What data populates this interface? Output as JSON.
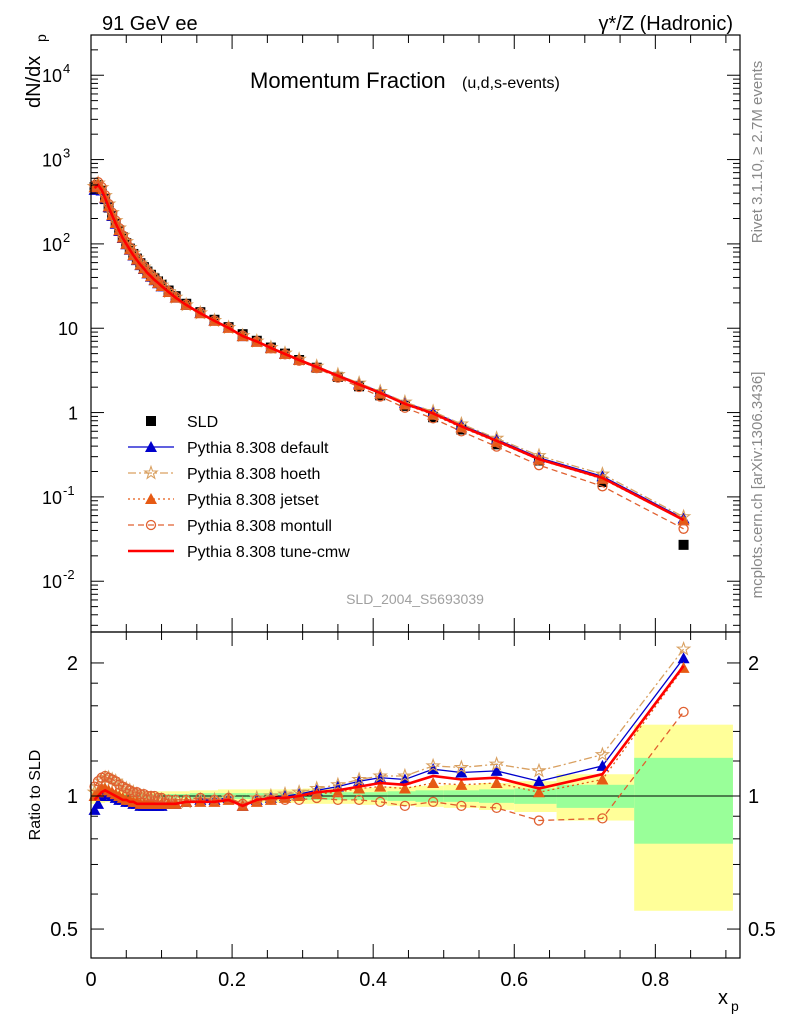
{
  "header": {
    "left": "91 GeV ee",
    "right": "γ*/Z (Hadronic)"
  },
  "side_text": {
    "rivet": "Rivet 3.1.10, ≥ 2.7M events",
    "mcplots": "mcplots.cern.ch [arXiv:1306.3436]"
  },
  "chart_data": [
    {
      "type": "scatter",
      "yscale": "log",
      "title": "Momentum Fraction",
      "title_suffix": "(u,d,s-events)",
      "ylabel": "dN/dx",
      "ylabel_sub": "p",
      "analysis_id": "SLD_2004_S5693039",
      "xlim": [
        0,
        0.92
      ],
      "ylim": [
        0.0025,
        30000
      ],
      "legend_placement": "center-left",
      "x": [
        0.005,
        0.01,
        0.015,
        0.02,
        0.025,
        0.03,
        0.035,
        0.04,
        0.045,
        0.05,
        0.055,
        0.06,
        0.065,
        0.07,
        0.075,
        0.08,
        0.085,
        0.09,
        0.095,
        0.1,
        0.11,
        0.12,
        0.135,
        0.155,
        0.175,
        0.195,
        0.215,
        0.235,
        0.255,
        0.275,
        0.295,
        0.32,
        0.35,
        0.38,
        0.41,
        0.445,
        0.485,
        0.525,
        0.575,
        0.635,
        0.725,
        0.84
      ],
      "series": [
        {
          "name": "SLD",
          "color": "#000000",
          "marker": "square",
          "line": "none",
          "values": [
            470,
            500,
            430,
            340,
            270,
            215,
            175,
            145,
            120,
            102,
            88,
            76,
            67,
            59,
            53,
            47,
            43,
            39,
            36,
            33,
            28,
            24,
            19.5,
            15.5,
            12.6,
            10.3,
            8.5,
            7.1,
            5.9,
            5.0,
            4.2,
            3.4,
            2.65,
            2.05,
            1.6,
            1.2,
            0.88,
            0.63,
            0.42,
            0.27,
            0.15,
            0.027
          ]
        },
        {
          "name": "Pythia 8.308 default",
          "color": "#0000cc",
          "marker": "triangle",
          "line": "solid",
          "ratio": [
            0.93,
            0.96,
            1.0,
            1.02,
            1.01,
            1.0,
            0.99,
            0.98,
            0.98,
            0.97,
            0.97,
            0.96,
            0.96,
            0.95,
            0.95,
            0.95,
            0.95,
            0.95,
            0.95,
            0.95,
            0.96,
            0.96,
            0.97,
            0.98,
            0.98,
            0.99,
            0.95,
            0.98,
            0.99,
            1.0,
            1.01,
            1.03,
            1.05,
            1.08,
            1.1,
            1.09,
            1.15,
            1.13,
            1.14,
            1.08,
            1.17,
            2.05
          ]
        },
        {
          "name": "Pythia 8.308 hoeth",
          "color": "#d9a060",
          "marker": "star",
          "line": "dashdot",
          "ratio": [
            1.02,
            1.05,
            1.08,
            1.1,
            1.1,
            1.09,
            1.08,
            1.06,
            1.05,
            1.04,
            1.03,
            1.02,
            1.01,
            1.0,
            1.0,
            0.99,
            0.99,
            0.98,
            0.98,
            0.98,
            0.97,
            0.97,
            0.97,
            0.98,
            0.98,
            0.99,
            0.96,
            0.99,
            1.0,
            1.01,
            1.02,
            1.04,
            1.06,
            1.09,
            1.11,
            1.11,
            1.17,
            1.16,
            1.18,
            1.14,
            1.24,
            2.15
          ]
        },
        {
          "name": "Pythia 8.308 jetset",
          "color": "#e65a14",
          "marker": "triangle",
          "line": "dotted",
          "ratio": [
            1.0,
            1.02,
            1.04,
            1.04,
            1.03,
            1.02,
            1.01,
            1.0,
            0.99,
            0.98,
            0.98,
            0.97,
            0.97,
            0.96,
            0.96,
            0.96,
            0.96,
            0.96,
            0.96,
            0.96,
            0.96,
            0.96,
            0.97,
            0.97,
            0.97,
            0.98,
            0.95,
            0.97,
            0.98,
            0.99,
            1.0,
            1.01,
            1.02,
            1.04,
            1.05,
            1.04,
            1.07,
            1.06,
            1.07,
            1.02,
            1.09,
            1.95
          ]
        },
        {
          "name": "Pythia 8.308 montull",
          "color": "#e06030",
          "marker": "circle",
          "line": "dashed",
          "ratio": [
            1.05,
            1.08,
            1.1,
            1.11,
            1.1,
            1.09,
            1.08,
            1.06,
            1.05,
            1.04,
            1.03,
            1.02,
            1.02,
            1.01,
            1.01,
            1.0,
            1.0,
            1.0,
            0.99,
            0.99,
            0.98,
            0.98,
            0.98,
            0.99,
            0.98,
            0.99,
            0.96,
            0.98,
            0.98,
            0.98,
            0.98,
            0.99,
            0.98,
            0.98,
            0.97,
            0.95,
            0.97,
            0.95,
            0.94,
            0.88,
            0.89,
            1.55
          ]
        },
        {
          "name": "Pythia 8.308 tune-cmw",
          "color": "#ff0000",
          "marker": "none",
          "line": "solid-thick",
          "ratio": [
            0.98,
            1.0,
            1.02,
            1.03,
            1.02,
            1.01,
            1.0,
            0.99,
            0.98,
            0.98,
            0.97,
            0.97,
            0.96,
            0.96,
            0.96,
            0.96,
            0.96,
            0.96,
            0.96,
            0.96,
            0.96,
            0.96,
            0.97,
            0.97,
            0.97,
            0.98,
            0.95,
            0.98,
            0.99,
            0.99,
            1.0,
            1.02,
            1.03,
            1.05,
            1.07,
            1.06,
            1.11,
            1.09,
            1.1,
            1.04,
            1.12,
            1.97
          ]
        }
      ]
    },
    {
      "type": "scatter",
      "yscale": "log",
      "ylabel": "Ratio to SLD",
      "xlabel": "x",
      "xlabel_sub": "p",
      "ylim": [
        0.43,
        2.35
      ],
      "yticks": [
        0.5,
        1,
        2
      ],
      "xticks": [
        0,
        0.2,
        0.4,
        0.6,
        0.8
      ],
      "xticklabels": [
        "0",
        "0.2",
        "0.4",
        "0.6",
        "0.8"
      ],
      "reference_line": 1,
      "uncertainty_bands": {
        "edges": [
          0.0,
          0.01,
          0.02,
          0.04,
          0.06,
          0.08,
          0.1,
          0.14,
          0.18,
          0.22,
          0.26,
          0.3,
          0.34,
          0.38,
          0.42,
          0.46,
          0.5,
          0.55,
          0.6,
          0.66,
          0.77,
          0.91
        ],
        "stat_color": "#99ff99",
        "total_color": "#ffff99",
        "stat": [
          0.02,
          0.015,
          0.01,
          0.01,
          0.01,
          0.01,
          0.01,
          0.015,
          0.015,
          0.015,
          0.015,
          0.02,
          0.02,
          0.02,
          0.025,
          0.03,
          0.03,
          0.035,
          0.04,
          0.06,
          0.22
        ],
        "total": [
          0.04,
          0.035,
          0.03,
          0.025,
          0.025,
          0.025,
          0.025,
          0.03,
          0.035,
          0.035,
          0.035,
          0.04,
          0.04,
          0.045,
          0.05,
          0.055,
          0.06,
          0.07,
          0.08,
          0.12,
          0.45
        ]
      }
    }
  ]
}
